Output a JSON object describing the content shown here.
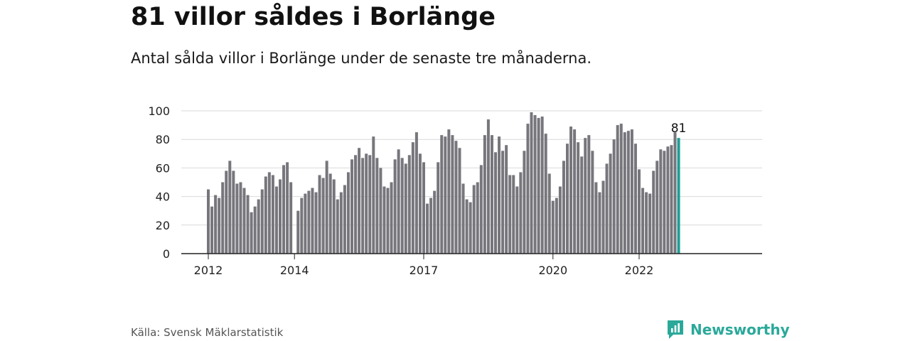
{
  "header": {
    "title": "81 villor såldes i Borlänge",
    "subtitle": "Antal sålda villor i Borlänge under de senaste tre månaderna."
  },
  "footer": {
    "source": "Källa: Svensk Mäklarstatistik",
    "brand": "Newsworthy"
  },
  "colors": {
    "bar": "#77767c",
    "highlight": "#1f9e93",
    "grid": "#d9d9d9",
    "axis": "#222222",
    "brand": "#2aa99a"
  },
  "chart_data": {
    "type": "bar",
    "x_start": "2012-01",
    "ylim": [
      0,
      100
    ],
    "yticks": [
      0,
      20,
      40,
      60,
      80,
      100
    ],
    "xticks": [
      {
        "label": "2012",
        "date": "2012-01"
      },
      {
        "label": "2014",
        "date": "2014-01"
      },
      {
        "label": "2017",
        "date": "2017-01"
      },
      {
        "label": "2020",
        "date": "2020-01"
      },
      {
        "label": "2022",
        "date": "2022-01"
      }
    ],
    "grid": true,
    "highlight_last": true,
    "last_value_label": "81",
    "values": [
      45,
      33,
      41,
      39,
      50,
      58,
      65,
      58,
      49,
      50,
      46,
      41,
      29,
      33,
      38,
      45,
      54,
      57,
      55,
      47,
      52,
      62,
      64,
      50,
      0,
      30,
      39,
      42,
      44,
      46,
      43,
      55,
      53,
      65,
      56,
      52,
      38,
      43,
      48,
      57,
      66,
      69,
      74,
      67,
      70,
      69,
      82,
      67,
      60,
      47,
      46,
      50,
      66,
      73,
      67,
      63,
      69,
      78,
      85,
      70,
      64,
      35,
      39,
      44,
      64,
      83,
      82,
      87,
      83,
      79,
      74,
      49,
      38,
      36,
      48,
      50,
      62,
      83,
      94,
      83,
      71,
      82,
      72,
      76,
      55,
      55,
      47,
      57,
      72,
      91,
      99,
      97,
      95,
      96,
      84,
      56,
      37,
      39,
      47,
      65,
      77,
      89,
      87,
      78,
      68,
      81,
      83,
      72,
      50,
      43,
      51,
      63,
      70,
      80,
      90,
      91,
      85,
      86,
      87,
      77,
      59,
      46,
      43,
      42,
      58,
      65,
      73,
      72,
      75,
      76,
      85,
      81
    ]
  }
}
